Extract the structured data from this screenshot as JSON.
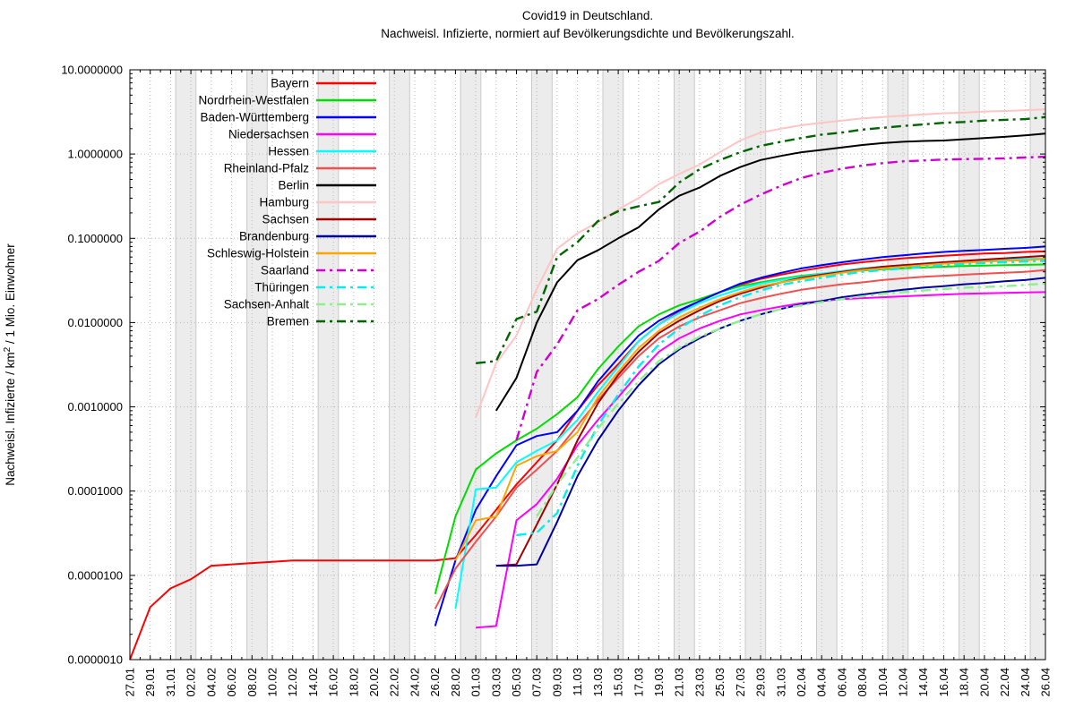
{
  "title": {
    "line1": "Covid19 in Deutschland.",
    "line2": "Nachweisl. Infizierte, normiert auf Bevölkerungsdichte und Bevölkerungszahl."
  },
  "axes": {
    "y_label_parts": {
      "prefix": "Nachweisl. Infizierte / km",
      "sup": "2",
      "suffix": " / 1 Mio. Einwohner"
    },
    "y_tick_labels": [
      "10.0000000",
      "1.0000000",
      "0.1000000",
      "0.0100000",
      "0.0010000",
      "0.0001000",
      "0.0000100",
      "0.0000010"
    ],
    "y_tick_values": [
      10,
      1,
      0.1,
      0.01,
      0.001,
      0.0001,
      1e-05,
      1e-06
    ],
    "x_tick_labels": [
      "27.01",
      "29.01",
      "31.01",
      "02.02",
      "04.02",
      "06.02",
      "08.02",
      "10.02",
      "12.02",
      "14.02",
      "16.02",
      "18.02",
      "20.02",
      "22.02",
      "24.02",
      "26.02",
      "28.02",
      "01.03",
      "03.03",
      "05.03",
      "07.03",
      "09.03",
      "11.03",
      "13.03",
      "15.03",
      "17.03",
      "19.03",
      "21.03",
      "23.03",
      "25.03",
      "27.03",
      "29.03",
      "31.03",
      "02.04",
      "04.04",
      "06.04",
      "08.04",
      "10.04",
      "12.04",
      "14.04",
      "16.04",
      "18.04",
      "20.04",
      "22.04",
      "24.04",
      "26.04"
    ]
  },
  "style": {
    "background": "#ffffff",
    "weekend_band": "#ececec",
    "band_edge": "#c9c9c9",
    "grid_dot": "#b8b8b8",
    "axis_color": "#000000",
    "text_color": "#000000"
  },
  "chart_data": {
    "type": "line",
    "ylog": true,
    "ylim": [
      1e-06,
      10
    ],
    "x_is_dates": true,
    "x_start": "27.01",
    "x_end": "26.04",
    "x_step_days": 2,
    "categories": [
      "27.01",
      "29.01",
      "31.01",
      "02.02",
      "04.02",
      "06.02",
      "08.02",
      "10.02",
      "12.02",
      "14.02",
      "16.02",
      "18.02",
      "20.02",
      "22.02",
      "24.02",
      "26.02",
      "28.02",
      "01.03",
      "03.03",
      "05.03",
      "07.03",
      "09.03",
      "11.03",
      "13.03",
      "15.03",
      "17.03",
      "19.03",
      "21.03",
      "23.03",
      "25.03",
      "27.03",
      "29.03",
      "31.03",
      "02.04",
      "04.04",
      "06.04",
      "08.04",
      "10.04",
      "12.04",
      "14.04",
      "16.04",
      "18.04",
      "20.04",
      "22.04",
      "24.04",
      "26.04"
    ],
    "legend_position": "top-left-inside",
    "series": [
      {
        "name": "Bayern",
        "color": "#ff0000",
        "dash": "solid",
        "values": [
          1e-06,
          4.2e-06,
          7e-06,
          9e-06,
          1.3e-05,
          1.35e-05,
          1.4e-05,
          1.45e-05,
          1.5e-05,
          1.5e-05,
          1.5e-05,
          1.5e-05,
          1.5e-05,
          1.5e-05,
          1.5e-05,
          1.5e-05,
          1.6e-05,
          3e-05,
          6e-05,
          0.00012,
          0.00022,
          0.0004,
          0.0009,
          0.0018,
          0.0032,
          0.006,
          0.0095,
          0.0135,
          0.018,
          0.023,
          0.028,
          0.033,
          0.037,
          0.041,
          0.045,
          0.049,
          0.052,
          0.055,
          0.058,
          0.06,
          0.062,
          0.064,
          0.066,
          0.067,
          0.069,
          0.07
        ]
      },
      {
        "name": "Nordrhein-Westfalen",
        "color": "#00dd00",
        "dash": "solid",
        "values": [
          null,
          null,
          null,
          null,
          null,
          null,
          null,
          null,
          null,
          null,
          null,
          null,
          null,
          null,
          null,
          6e-06,
          5e-05,
          0.00018,
          0.00028,
          0.0004,
          0.00055,
          0.00082,
          0.0013,
          0.0028,
          0.0052,
          0.009,
          0.0125,
          0.016,
          0.019,
          0.023,
          0.027,
          0.03,
          0.033,
          0.036,
          0.038,
          0.04,
          0.0415,
          0.043,
          0.044,
          0.045,
          0.046,
          0.047,
          0.0475,
          0.048,
          0.0485,
          0.049
        ]
      },
      {
        "name": "Baden-Württemberg",
        "color": "#0000ff",
        "dash": "solid",
        "values": [
          null,
          null,
          null,
          null,
          null,
          null,
          null,
          null,
          null,
          null,
          null,
          null,
          null,
          null,
          null,
          2.5e-06,
          1.5e-05,
          6e-05,
          0.00015,
          0.00035,
          0.00045,
          0.0005,
          0.0009,
          0.002,
          0.0038,
          0.007,
          0.0105,
          0.014,
          0.018,
          0.023,
          0.029,
          0.034,
          0.039,
          0.044,
          0.048,
          0.052,
          0.056,
          0.06,
          0.063,
          0.066,
          0.069,
          0.071,
          0.073,
          0.075,
          0.077,
          0.08
        ]
      },
      {
        "name": "Niedersachsen",
        "color": "#ff00ff",
        "dash": "solid",
        "values": [
          null,
          null,
          null,
          null,
          null,
          null,
          null,
          null,
          null,
          null,
          null,
          null,
          null,
          null,
          null,
          null,
          null,
          2.4e-06,
          2.5e-06,
          4.5e-05,
          7e-05,
          0.00014,
          0.00035,
          0.0007,
          0.0013,
          0.0025,
          0.0045,
          0.0065,
          0.0085,
          0.0105,
          0.0125,
          0.014,
          0.0155,
          0.017,
          0.018,
          0.019,
          0.0195,
          0.02,
          0.0205,
          0.021,
          0.0215,
          0.022,
          0.0222,
          0.0225,
          0.0228,
          0.023
        ]
      },
      {
        "name": "Hessen",
        "color": "#00ffff",
        "dash": "solid",
        "values": [
          null,
          null,
          null,
          null,
          null,
          null,
          null,
          null,
          null,
          null,
          null,
          null,
          null,
          null,
          null,
          null,
          4e-06,
          0.000105,
          0.00011,
          0.00022,
          0.0003,
          0.0004,
          0.0007,
          0.0015,
          0.003,
          0.006,
          0.0095,
          0.013,
          0.017,
          0.021,
          0.025,
          0.029,
          0.032,
          0.035,
          0.038,
          0.041,
          0.044,
          0.046,
          0.048,
          0.05,
          0.052,
          0.053,
          0.0545,
          0.0555,
          0.057,
          0.058
        ]
      },
      {
        "name": "Rheinland-Pfalz",
        "color": "#f05050",
        "dash": "solid",
        "values": [
          null,
          null,
          null,
          null,
          null,
          null,
          null,
          null,
          null,
          null,
          null,
          null,
          null,
          null,
          null,
          4e-06,
          1.2e-05,
          2.5e-05,
          5e-05,
          0.00011,
          0.00018,
          0.0003,
          0.0006,
          0.0012,
          0.0022,
          0.004,
          0.0065,
          0.009,
          0.0115,
          0.014,
          0.017,
          0.0195,
          0.022,
          0.0245,
          0.0265,
          0.0285,
          0.03,
          0.032,
          0.0335,
          0.035,
          0.036,
          0.037,
          0.038,
          0.039,
          0.04,
          0.042
        ]
      },
      {
        "name": "Berlin",
        "color": "#000000",
        "dash": "solid",
        "values": [
          null,
          null,
          null,
          null,
          null,
          null,
          null,
          null,
          null,
          null,
          null,
          null,
          null,
          null,
          null,
          null,
          null,
          null,
          0.0009,
          0.0022,
          0.01,
          0.03,
          0.055,
          0.072,
          0.1,
          0.135,
          0.22,
          0.32,
          0.4,
          0.55,
          0.7,
          0.85,
          0.95,
          1.05,
          1.12,
          1.2,
          1.28,
          1.35,
          1.4,
          1.43,
          1.45,
          1.5,
          1.55,
          1.6,
          1.67,
          1.75
        ]
      },
      {
        "name": "Hamburg",
        "color": "#ffc4c4",
        "dash": "solid",
        "values": [
          null,
          null,
          null,
          null,
          null,
          null,
          null,
          null,
          null,
          null,
          null,
          null,
          null,
          null,
          null,
          null,
          null,
          0.00075,
          0.0033,
          0.007,
          0.025,
          0.075,
          0.115,
          0.155,
          0.22,
          0.3,
          0.44,
          0.58,
          0.75,
          1.05,
          1.45,
          1.8,
          2.0,
          2.2,
          2.35,
          2.5,
          2.65,
          2.75,
          2.85,
          2.95,
          3.05,
          3.1,
          3.2,
          3.25,
          3.3,
          3.4
        ]
      },
      {
        "name": "Sachsen",
        "color": "#a00000",
        "dash": "solid",
        "values": [
          null,
          null,
          null,
          null,
          null,
          null,
          null,
          null,
          null,
          null,
          null,
          null,
          null,
          null,
          null,
          null,
          null,
          null,
          1.3e-05,
          1.35e-05,
          4e-05,
          0.00012,
          0.0004,
          0.0011,
          0.0024,
          0.0045,
          0.0075,
          0.0105,
          0.014,
          0.018,
          0.022,
          0.026,
          0.03,
          0.034,
          0.037,
          0.04,
          0.043,
          0.046,
          0.048,
          0.05,
          0.052,
          0.054,
          0.056,
          0.058,
          0.06,
          0.062
        ]
      },
      {
        "name": "Brandenburg",
        "color": "#0000a0",
        "dash": "solid",
        "values": [
          null,
          null,
          null,
          null,
          null,
          null,
          null,
          null,
          null,
          null,
          null,
          null,
          null,
          null,
          null,
          null,
          null,
          null,
          1.3e-05,
          1.3e-05,
          1.35e-05,
          4.3e-05,
          0.00015,
          0.0004,
          0.0009,
          0.0018,
          0.0032,
          0.0048,
          0.0065,
          0.0085,
          0.0105,
          0.0125,
          0.0145,
          0.0165,
          0.018,
          0.02,
          0.0215,
          0.023,
          0.0245,
          0.026,
          0.027,
          0.0285,
          0.0295,
          0.031,
          0.032,
          0.034
        ]
      },
      {
        "name": "Schleswig-Holstein",
        "color": "#ffa500",
        "dash": "solid",
        "values": [
          null,
          null,
          null,
          null,
          null,
          null,
          null,
          null,
          null,
          null,
          null,
          null,
          null,
          null,
          null,
          null,
          1.5e-05,
          4.5e-05,
          5e-05,
          0.0002,
          0.00026,
          0.0003,
          0.0005,
          0.0013,
          0.0026,
          0.005,
          0.008,
          0.0115,
          0.015,
          0.019,
          0.023,
          0.027,
          0.03,
          0.033,
          0.036,
          0.039,
          0.042,
          0.044,
          0.046,
          0.048,
          0.05,
          0.0515,
          0.053,
          0.054,
          0.055,
          0.057
        ]
      },
      {
        "name": "Saarland",
        "color": "#d100d1",
        "dash": "dashdot",
        "values": [
          null,
          null,
          null,
          null,
          null,
          null,
          null,
          null,
          null,
          null,
          null,
          null,
          null,
          null,
          null,
          null,
          null,
          null,
          null,
          0.0004,
          0.0026,
          0.0055,
          0.014,
          0.019,
          0.028,
          0.04,
          0.054,
          0.088,
          0.12,
          0.18,
          0.25,
          0.33,
          0.42,
          0.52,
          0.6,
          0.67,
          0.73,
          0.78,
          0.82,
          0.84,
          0.86,
          0.87,
          0.88,
          0.89,
          0.91,
          0.93
        ]
      },
      {
        "name": "Thüringen",
        "color": "#00eeee",
        "dash": "dashdot",
        "values": [
          null,
          null,
          null,
          null,
          null,
          null,
          null,
          null,
          null,
          null,
          null,
          null,
          null,
          null,
          null,
          null,
          null,
          null,
          null,
          3e-05,
          3.2e-05,
          5.5e-05,
          0.0002,
          0.0006,
          0.0014,
          0.003,
          0.0055,
          0.0085,
          0.012,
          0.016,
          0.02,
          0.024,
          0.028,
          0.031,
          0.034,
          0.037,
          0.04,
          0.042,
          0.044,
          0.046,
          0.048,
          0.0495,
          0.051,
          0.052,
          0.053,
          0.054
        ]
      },
      {
        "name": "Sachsen-Anhalt",
        "color": "#90ee90",
        "dash": "dashdot",
        "values": [
          null,
          null,
          null,
          null,
          null,
          null,
          null,
          null,
          null,
          null,
          null,
          null,
          null,
          null,
          null,
          null,
          null,
          null,
          null,
          null,
          5e-05,
          0.00012,
          0.00025,
          0.00055,
          0.0011,
          0.002,
          0.0035,
          0.005,
          0.0068,
          0.0085,
          0.0105,
          0.0125,
          0.0145,
          0.016,
          0.0175,
          0.019,
          0.0205,
          0.022,
          0.023,
          0.024,
          0.025,
          0.026,
          0.0265,
          0.027,
          0.028,
          0.029
        ]
      },
      {
        "name": "Bremen",
        "color": "#006400",
        "dash": "dashdot",
        "values": [
          null,
          null,
          null,
          null,
          null,
          null,
          null,
          null,
          null,
          null,
          null,
          null,
          null,
          null,
          null,
          null,
          null,
          0.0033,
          0.0035,
          0.011,
          0.0135,
          0.06,
          0.09,
          0.16,
          0.21,
          0.24,
          0.27,
          0.46,
          0.66,
          0.85,
          1.05,
          1.25,
          1.4,
          1.55,
          1.7,
          1.8,
          1.95,
          2.05,
          2.15,
          2.25,
          2.35,
          2.4,
          2.5,
          2.55,
          2.6,
          2.75
        ]
      }
    ]
  }
}
